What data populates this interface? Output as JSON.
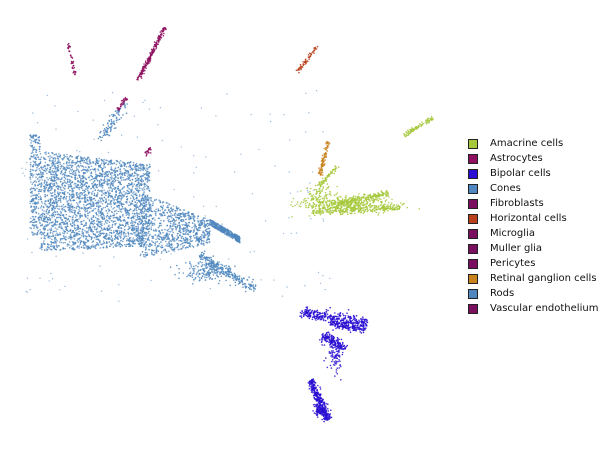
{
  "chart_data": {
    "type": "scatter",
    "title": "",
    "xlabel": "",
    "ylabel": "",
    "axes_visible": false,
    "grid": false,
    "legend_position": "right",
    "legend_marker": "square",
    "series": [
      {
        "name": "Amacrine cells",
        "color": "#a6c93c",
        "clusters": [
          {
            "shape": "blob",
            "center": [
              345,
              204
            ],
            "spread": [
              45,
              8
            ],
            "n": 420
          },
          {
            "shape": "streak",
            "from": [
              312,
              212
            ],
            "to": [
              400,
              208
            ],
            "width": 3,
            "n": 220
          },
          {
            "shape": "streak",
            "from": [
              340,
              203
            ],
            "to": [
              388,
              193
            ],
            "width": 3,
            "n": 160
          },
          {
            "shape": "streak",
            "from": [
              320,
              185
            ],
            "to": [
              338,
              166
            ],
            "width": 2,
            "n": 60
          },
          {
            "shape": "streak",
            "from": [
              404,
              135
            ],
            "to": [
              433,
              118
            ],
            "width": 2,
            "n": 90
          },
          {
            "shape": "blob",
            "center": [
              320,
              195
            ],
            "spread": [
              15,
              12
            ],
            "n": 80
          }
        ]
      },
      {
        "name": "Astrocytes",
        "color": "#8e0f5f",
        "clusters": [
          {
            "shape": "streak",
            "from": [
              138,
              80
            ],
            "to": [
              165,
              27
            ],
            "width": 2,
            "n": 180
          },
          {
            "shape": "streak",
            "from": [
              68,
              43
            ],
            "to": [
              75,
              75
            ],
            "width": 1.5,
            "n": 40
          },
          {
            "shape": "streak",
            "from": [
              118,
              110
            ],
            "to": [
              126,
              98
            ],
            "width": 2,
            "n": 30
          },
          {
            "shape": "streak",
            "from": [
              145,
              155
            ],
            "to": [
              151,
              148
            ],
            "width": 2,
            "n": 20
          }
        ]
      },
      {
        "name": "Bipolar cells",
        "color": "#2a0fd2",
        "clusters": [
          {
            "shape": "streak",
            "from": [
              300,
              312
            ],
            "to": [
              368,
              323
            ],
            "width": 6,
            "n": 320
          },
          {
            "shape": "streak",
            "from": [
              330,
              323
            ],
            "to": [
              365,
              330
            ],
            "width": 4,
            "n": 160
          },
          {
            "shape": "streak",
            "from": [
              322,
              335
            ],
            "to": [
              345,
              350
            ],
            "width": 6,
            "n": 180
          },
          {
            "shape": "streak",
            "from": [
              311,
              380
            ],
            "to": [
              328,
              420
            ],
            "width": 4,
            "n": 300
          },
          {
            "shape": "blob",
            "center": [
              336,
              355
            ],
            "spread": [
              8,
              15
            ],
            "n": 80
          },
          {
            "shape": "blob",
            "center": [
              320,
              410
            ],
            "spread": [
              6,
              6
            ],
            "n": 120
          }
        ]
      },
      {
        "name": "Cones",
        "color": "#4f87be",
        "clusters": [
          {
            "shape": "blob",
            "center": [
              205,
              272
            ],
            "spread": [
              22,
              10
            ],
            "n": 150
          }
        ]
      },
      {
        "name": "Fibroblasts",
        "color": "#7a0f5f",
        "clusters": []
      },
      {
        "name": "Horizontal cells",
        "color": "#b8411c",
        "clusters": [
          {
            "shape": "streak",
            "from": [
              298,
              72
            ],
            "to": [
              317,
              46
            ],
            "width": 2,
            "n": 60
          }
        ]
      },
      {
        "name": "Microglia",
        "color": "#7a0f5f",
        "clusters": []
      },
      {
        "name": "Muller glia",
        "color": "#7a0f5f",
        "clusters": []
      },
      {
        "name": "Pericytes",
        "color": "#7a0f5f",
        "clusters": []
      },
      {
        "name": "Retinal ganglion cells",
        "color": "#c8821c",
        "clusters": [
          {
            "shape": "streak",
            "from": [
              320,
              175
            ],
            "to": [
              328,
              142
            ],
            "width": 2.5,
            "n": 90
          }
        ]
      },
      {
        "name": "Rods",
        "color": "#4f87be",
        "clusters": [
          {
            "shape": "main_mass",
            "n": 5200
          },
          {
            "shape": "streak",
            "from": [
              100,
              140
            ],
            "to": [
              126,
              102
            ],
            "width": 6,
            "n": 90
          },
          {
            "shape": "streak",
            "from": [
              200,
              255
            ],
            "to": [
              255,
              290
            ],
            "width": 5,
            "n": 240
          }
        ]
      },
      {
        "name": "Vascular endothelium",
        "color": "#7a0f5f",
        "clusters": []
      }
    ]
  },
  "legend": {
    "items": [
      {
        "label": "Amacrine cells",
        "color": "#a6c93c"
      },
      {
        "label": "Astrocytes",
        "color": "#8e0f5f"
      },
      {
        "label": "Bipolar cells",
        "color": "#2a0fd2"
      },
      {
        "label": "Cones",
        "color": "#4f87be"
      },
      {
        "label": "Fibroblasts",
        "color": "#7a0f5f"
      },
      {
        "label": "Horizontal cells",
        "color": "#b8411c"
      },
      {
        "label": "Microglia",
        "color": "#7a0f5f"
      },
      {
        "label": "Muller glia",
        "color": "#7a0f5f"
      },
      {
        "label": "Pericytes",
        "color": "#7a0f5f"
      },
      {
        "label": "Retinal ganglion cells",
        "color": "#c8821c"
      },
      {
        "label": "Rods",
        "color": "#4f87be"
      },
      {
        "label": "Vascular endothelium",
        "color": "#7a0f5f"
      }
    ]
  }
}
